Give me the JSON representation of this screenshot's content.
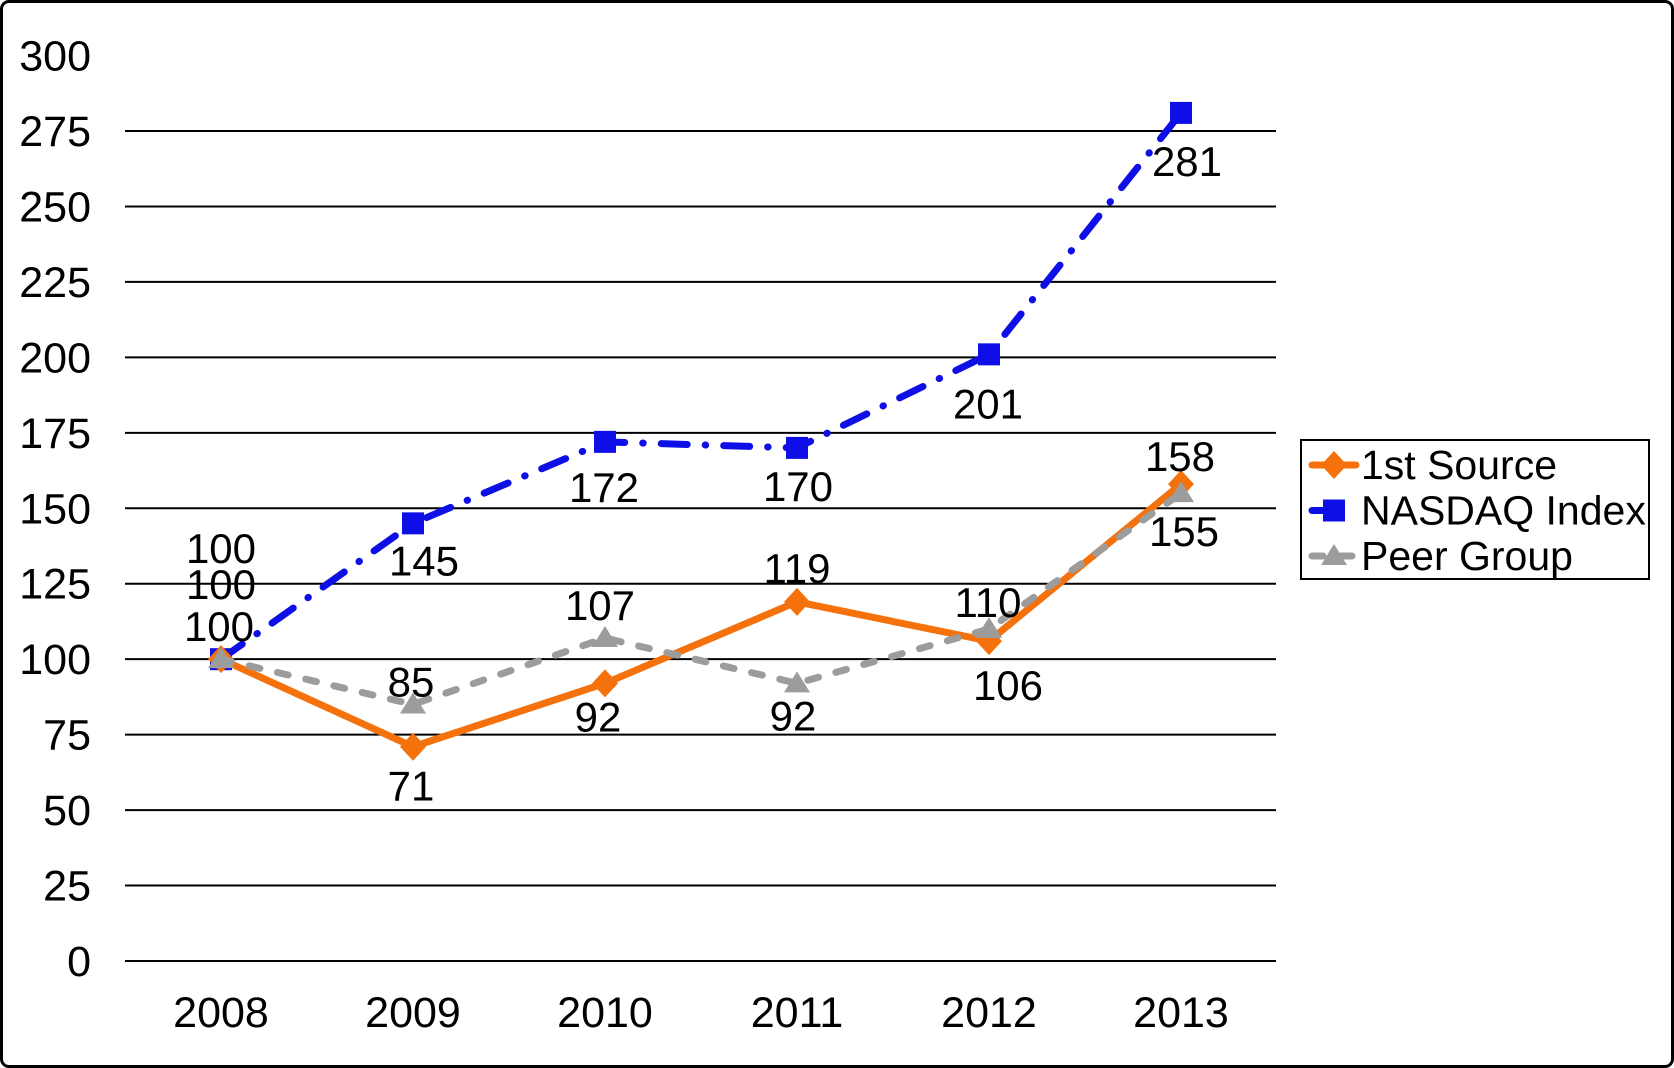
{
  "chart_data": {
    "type": "line",
    "title": "",
    "categories": [
      "2008",
      "2009",
      "2010",
      "2011",
      "2012",
      "2013"
    ],
    "series": [
      {
        "name": "1st Source",
        "color": "#F4710C",
        "marker": "diamond",
        "line_style": "solid",
        "values": [
          100,
          71,
          92,
          119,
          106,
          158
        ],
        "label_offsets": [
          [
            0,
            -111
          ],
          [
            -2,
            39
          ],
          [
            -7,
            33
          ],
          [
            0,
            -34
          ],
          [
            19,
            44
          ],
          [
            -1,
            -28
          ]
        ]
      },
      {
        "name": "NASDAQ Index",
        "color": "#0E0EE6",
        "marker": "square",
        "line_style": "dash-dot",
        "values": [
          100,
          145,
          172,
          170,
          201,
          281
        ],
        "label_offsets": [
          [
            0,
            -75
          ],
          [
            11,
            37
          ],
          [
            -1,
            45
          ],
          [
            1,
            38
          ],
          [
            -1,
            49
          ],
          [
            6,
            48
          ]
        ]
      },
      {
        "name": "Peer Group",
        "color": "#9C9C9C",
        "marker": "triangle",
        "line_style": "dashed",
        "values": [
          100,
          85,
          107,
          92,
          110,
          155
        ],
        "label_offsets": [
          [
            -2,
            -33
          ],
          [
            -2,
            -23
          ],
          [
            -5,
            -33
          ],
          [
            -4,
            32
          ],
          [
            -1,
            -27
          ],
          [
            3,
            38
          ]
        ]
      }
    ],
    "y_axis": {
      "min": 0,
      "max": 300,
      "tick_step": 25,
      "tick_labels": [
        "0",
        "25",
        "50",
        "75",
        "100",
        "125",
        "150",
        "175",
        "200",
        "225",
        "250",
        "275",
        "300"
      ],
      "gridline_max": 275
    },
    "x_axis": {
      "tick_labels": [
        "2008",
        "2009",
        "2010",
        "2011",
        "2012",
        "2013"
      ]
    },
    "grid": true,
    "legend": {
      "position": "right",
      "entries": [
        "1st Source",
        "NASDAQ Index",
        "Peer Group"
      ]
    },
    "colors": {
      "background": "#FFFFFF",
      "grid": "#000000",
      "text": "#000000",
      "legend_border": "#000000"
    }
  }
}
